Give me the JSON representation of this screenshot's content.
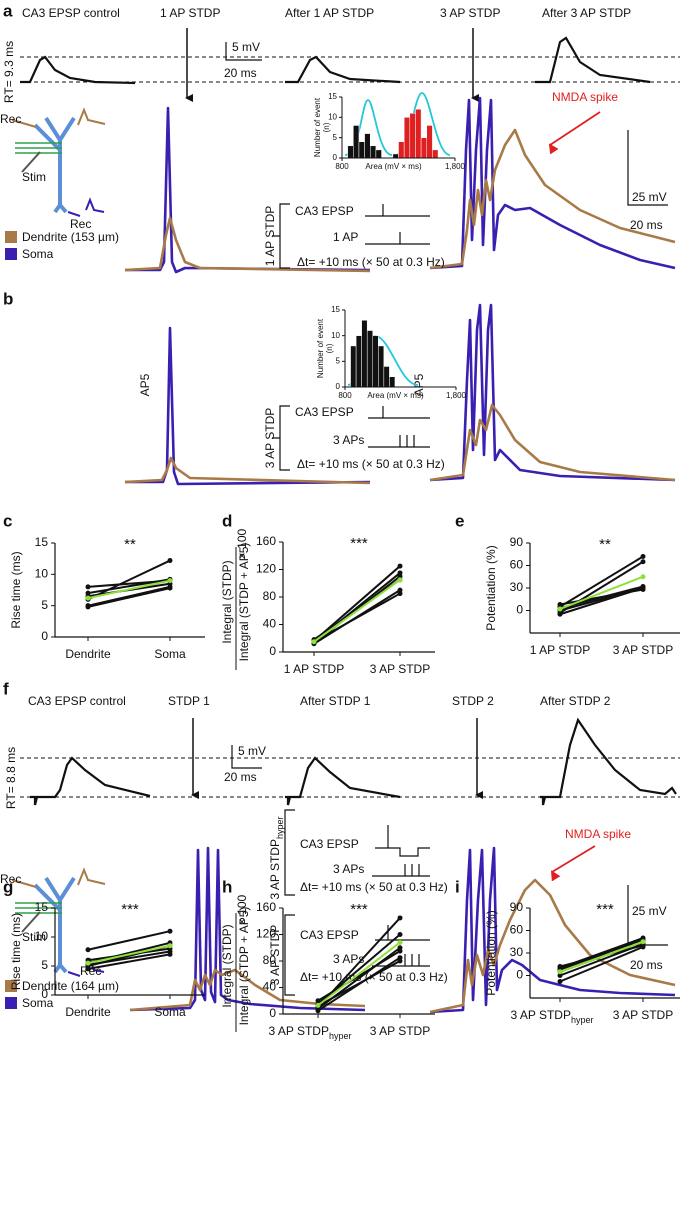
{
  "figure": {
    "a": {
      "panel": "a",
      "titles": [
        "CA3 EPSP control",
        "1 AP STDP",
        "After 1 AP STDP",
        "3 AP STDP",
        "After 3 AP STDP"
      ],
      "rt": "RT= 9.3 ms",
      "scale_small": [
        "5 mV",
        "20 ms"
      ],
      "diagram": [
        "Rec",
        "Stim",
        "Rec"
      ],
      "legend": [
        "Dendrite (153 µm)",
        "Soma"
      ],
      "annotation": "NMDA spike",
      "scale_large": [
        "25 mV",
        "20 ms"
      ],
      "protocol": {
        "label": "1 AP STDP",
        "lines": [
          "CA3 EPSP",
          "1 AP",
          "Δt= +10 ms (× 50 at 0.3 Hz)"
        ]
      }
    },
    "b": {
      "panel": "b",
      "drug": [
        "AP5",
        "AP5"
      ],
      "protocol": {
        "label": "3 AP STDP",
        "lines": [
          "CA3 EPSP",
          "3 APs",
          "Δt= +10 ms (× 50 at 0.3 Hz)"
        ]
      }
    },
    "f": {
      "panel": "f",
      "titles": [
        "CA3 EPSP control",
        "STDP 1",
        "After STDP 1",
        "STDP 2",
        "After STDP 2"
      ],
      "rt": "RT= 8.8 ms",
      "scale_small": [
        "5 mV",
        "20 ms"
      ],
      "diagram": [
        "Rec",
        "Stim",
        "Rec"
      ],
      "legend": [
        "Dendrite (164 µm)",
        "Soma"
      ],
      "annotation": "NMDA spike",
      "scale_large": [
        "25 mV",
        "20 ms"
      ],
      "protocols": [
        {
          "label": "3 AP STDP",
          "subscript": "hyper",
          "lines": [
            "CA3 EPSP",
            "3 APs",
            "Δt= +10 ms (× 50 at 0.3 Hz)"
          ]
        },
        {
          "label": "3 AP STDP",
          "lines": [
            "CA3 EPSP",
            "3 APs",
            "Δt= +10 ms (× 50 at 0.3 Hz)"
          ]
        }
      ]
    }
  },
  "chart_data": [
    {
      "type": "histogram",
      "ylabel": "Number of event",
      "ylabel_unit": "(n)",
      "xlabel": "Area (mV × ms)",
      "bins": [
        800,
        850,
        900,
        950,
        1000,
        1050,
        1100,
        1150,
        1200,
        1250,
        1300,
        1350,
        1400,
        1450,
        1500,
        1550,
        1600,
        1650,
        1700,
        1750,
        1800
      ],
      "series": [
        {
          "color": "#111111",
          "values": [
            0,
            3,
            8,
            4,
            6,
            3,
            2,
            0,
            0,
            1,
            0,
            0,
            0,
            0,
            0,
            0,
            0,
            0,
            0,
            0
          ]
        },
        {
          "color": "#e02020",
          "values": [
            0,
            0,
            0,
            0,
            0,
            0,
            0,
            0,
            0,
            0,
            4,
            10,
            11,
            12,
            5,
            8,
            2,
            0,
            0,
            0
          ]
        }
      ],
      "xlim": [
        800,
        1800
      ],
      "xticks": [
        800,
        {
          "value": 1800,
          "label": "1,800"
        }
      ],
      "ylim": [
        0,
        15
      ],
      "yticks": [
        0,
        5,
        10,
        15
      ]
    },
    {
      "type": "histogram",
      "ylabel": "Number of event",
      "ylabel_unit": "(n)",
      "xlabel": "Area (mV × ms)",
      "bins": [
        800,
        850,
        900,
        950,
        1000,
        1050,
        1100,
        1150,
        1200,
        1250,
        1300,
        1350,
        1400,
        1450,
        1500,
        1550,
        1600,
        1650,
        1700,
        1750,
        1800
      ],
      "series": [
        {
          "color": "#111111",
          "values": [
            0,
            8,
            10,
            13,
            11,
            10,
            8,
            4,
            2,
            0,
            0,
            0,
            0,
            0,
            0,
            0,
            0,
            0,
            0,
            0
          ]
        }
      ],
      "xlim": [
        800,
        1800
      ],
      "xticks": [
        800,
        {
          "value": 1800,
          "label": "1,800"
        }
      ],
      "ylim": [
        0,
        15
      ],
      "yticks": [
        0,
        5,
        10,
        15
      ]
    },
    {
      "type": "line",
      "panel": "c",
      "annotation": "**",
      "ylabel": "Rise time (ms)",
      "categories": [
        "Dendrite",
        "Soma"
      ],
      "ylim": [
        0,
        15
      ],
      "yticks": [
        0,
        5,
        10,
        15
      ],
      "series": [
        {
          "color": "#111111",
          "values": [
            6,
            12.2
          ]
        },
        {
          "color": "#111111",
          "values": [
            5,
            8
          ]
        },
        {
          "color": "#111111",
          "values": [
            8,
            9
          ]
        },
        {
          "color": "#111111",
          "values": [
            7,
            9.2
          ]
        },
        {
          "color": "#111111",
          "values": [
            4.8,
            7.8
          ]
        },
        {
          "color": "#111111",
          "values": [
            6.5,
            8.5
          ]
        },
        {
          "color": "#8ee03a",
          "values": [
            6.2,
            9
          ]
        }
      ]
    },
    {
      "type": "line",
      "panel": "d",
      "annotation": "***",
      "ylabel": "Integral (STDP)",
      "ylabel_denominator": "Integral (STDP + AP5)",
      "ylabel_factor": "× 100",
      "categories": [
        "1 AP STDP",
        "3 AP STDP"
      ],
      "ylim": [
        0,
        160
      ],
      "yticks": [
        0,
        40,
        80,
        120,
        160
      ],
      "series": [
        {
          "color": "#111111",
          "values": [
            15,
            85
          ]
        },
        {
          "color": "#111111",
          "values": [
            12,
            90
          ]
        },
        {
          "color": "#111111",
          "values": [
            18,
            105
          ]
        },
        {
          "color": "#111111",
          "values": [
            14,
            115
          ]
        },
        {
          "color": "#111111",
          "values": [
            16,
            125
          ]
        },
        {
          "color": "#111111",
          "values": [
            13,
            110
          ]
        },
        {
          "color": "#8ee03a",
          "values": [
            15,
            105
          ]
        }
      ]
    },
    {
      "type": "line",
      "panel": "e",
      "annotation": "**",
      "ylabel": "Potentiation (%)",
      "categories": [
        "1 AP STDP",
        "3 AP STDP"
      ],
      "ylim": [
        -30,
        90
      ],
      "yticks": [
        0,
        30,
        60,
        90
      ],
      "series": [
        {
          "color": "#111111",
          "values": [
            5,
            72
          ]
        },
        {
          "color": "#111111",
          "values": [
            -3,
            65
          ]
        },
        {
          "color": "#111111",
          "values": [
            0,
            30
          ]
        },
        {
          "color": "#111111",
          "values": [
            8,
            28
          ]
        },
        {
          "color": "#111111",
          "values": [
            3,
            32
          ]
        },
        {
          "color": "#111111",
          "values": [
            -5,
            30
          ]
        },
        {
          "color": "#8ee03a",
          "values": [
            2,
            45
          ]
        }
      ]
    },
    {
      "type": "line",
      "panel": "g",
      "annotation": "***",
      "ylabel": "Rise time (ms)",
      "categories": [
        "Dendrite",
        "Soma"
      ],
      "ylim": [
        0,
        15
      ],
      "yticks": [
        0,
        5,
        10,
        15
      ],
      "series": [
        {
          "color": "#111111",
          "values": [
            7.8,
            11
          ]
        },
        {
          "color": "#111111",
          "values": [
            5,
            8.5
          ]
        },
        {
          "color": "#111111",
          "values": [
            5.5,
            9
          ]
        },
        {
          "color": "#111111",
          "values": [
            4.5,
            7
          ]
        },
        {
          "color": "#111111",
          "values": [
            5.2,
            7.5
          ]
        },
        {
          "color": "#111111",
          "values": [
            6,
            8
          ]
        },
        {
          "color": "#8ee03a",
          "values": [
            5.5,
            8.5
          ]
        }
      ]
    },
    {
      "type": "line",
      "panel": "h",
      "annotation": "***",
      "ylabel": "Integral (STDP)",
      "ylabel_denominator": "Integral (STDP + AP5)",
      "ylabel_factor": "× 100",
      "categories": [
        "3 AP STDP",
        "3 AP STDP"
      ],
      "first_category_subscript": "hyper",
      "ylim": [
        0,
        160
      ],
      "yticks": [
        0,
        40,
        80,
        120,
        160
      ],
      "series": [
        {
          "color": "#111111",
          "values": [
            10,
            145
          ]
        },
        {
          "color": "#111111",
          "values": [
            15,
            120
          ]
        },
        {
          "color": "#111111",
          "values": [
            8,
            100
          ]
        },
        {
          "color": "#111111",
          "values": [
            20,
            95
          ]
        },
        {
          "color": "#111111",
          "values": [
            5,
            85
          ]
        },
        {
          "color": "#111111",
          "values": [
            12,
            80
          ]
        },
        {
          "color": "#8ee03a",
          "values": [
            13,
            108
          ]
        }
      ]
    },
    {
      "type": "line",
      "panel": "i",
      "annotation": "***",
      "ylabel": "Potentiation (%)",
      "categories": [
        "3 AP STDP",
        "3 AP STDP"
      ],
      "first_category_subscript": "hyper",
      "ylim": [
        -30,
        90
      ],
      "yticks": [
        0,
        30,
        60,
        90
      ],
      "series": [
        {
          "color": "#111111",
          "values": [
            10,
            50
          ]
        },
        {
          "color": "#111111",
          "values": [
            -8,
            38
          ]
        },
        {
          "color": "#111111",
          "values": [
            5,
            45
          ]
        },
        {
          "color": "#111111",
          "values": [
            12,
            40
          ]
        },
        {
          "color": "#111111",
          "values": [
            0,
            42
          ]
        },
        {
          "color": "#111111",
          "values": [
            8,
            48
          ]
        },
        {
          "color": "#8ee03a",
          "values": [
            5,
            45
          ]
        }
      ]
    }
  ]
}
